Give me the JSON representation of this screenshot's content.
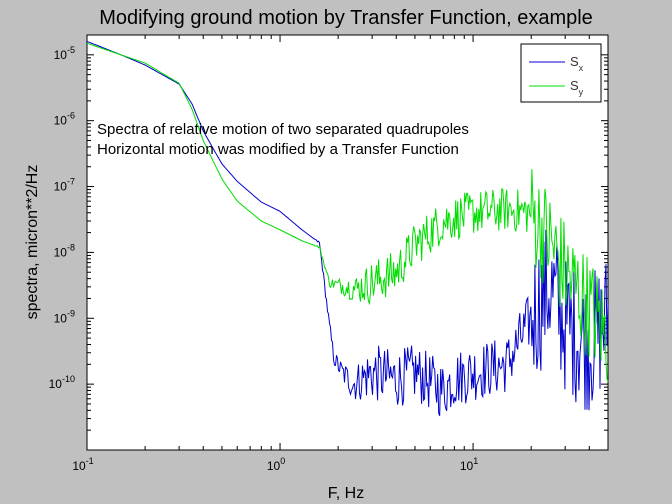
{
  "chart_data": {
    "type": "line",
    "title": "Modifying ground motion by Transfer Function, example",
    "xlabel": "F, Hz",
    "ylabel": "spectra, micron**2/Hz",
    "xscale": "log",
    "yscale": "log",
    "xlim": [
      0.1,
      50
    ],
    "ylim": [
      1e-11,
      2e-05
    ],
    "x_ticks": [
      {
        "base": "10",
        "exp": "-1",
        "value": 0.1
      },
      {
        "base": "10",
        "exp": "0",
        "value": 1
      },
      {
        "base": "10",
        "exp": "1",
        "value": 10
      }
    ],
    "y_ticks": [
      {
        "base": "10",
        "exp": "-10",
        "value": 1e-10
      },
      {
        "base": "10",
        "exp": "-9",
        "value": 1e-09
      },
      {
        "base": "10",
        "exp": "-8",
        "value": 1e-08
      },
      {
        "base": "10",
        "exp": "-7",
        "value": 1e-07
      },
      {
        "base": "10",
        "exp": "-6",
        "value": 1e-06
      },
      {
        "base": "10",
        "exp": "-5",
        "value": 1e-05
      }
    ],
    "annotations": [
      "Spectra of relative motion of two separated quadrupoles",
      "Horizontal motion was modified by a Transfer Function"
    ],
    "legend_placement": "top-right",
    "grid": false,
    "series": [
      {
        "name": "S",
        "subscript": "x",
        "color": "#0000cc",
        "x": [
          0.1,
          0.15,
          0.2,
          0.3,
          0.35,
          0.4,
          0.5,
          0.6,
          0.8,
          1.0,
          1.3,
          1.6,
          1.8,
          1.9,
          2.1,
          2.4,
          3.0,
          4.0,
          5.0,
          7.0,
          8.0,
          10.0,
          15.0,
          20.0,
          25.0,
          30.0,
          40.0,
          50.0
        ],
        "y": [
          1.6e-05,
          1e-05,
          7e-06,
          3.6e-06,
          1.8e-06,
          7e-07,
          2.2e-07,
          1.2e-07,
          5.8e-08,
          4.2e-08,
          2.2e-08,
          1.4e-08,
          8e-10,
          2.5e-10,
          1.5e-10,
          1e-10,
          1.5e-10,
          1.2e-10,
          1.5e-10,
          8e-11,
          1.2e-10,
          1.5e-10,
          2e-10,
          1e-09,
          3e-09,
          8e-10,
          4e-10,
          1e-09
        ],
        "noise": 0.22
      },
      {
        "name": "S",
        "subscript": "y",
        "color": "#00dd00",
        "x": [
          0.1,
          0.15,
          0.2,
          0.3,
          0.35,
          0.4,
          0.5,
          0.6,
          0.8,
          1.0,
          1.3,
          1.6,
          1.8,
          2.0,
          2.5,
          3.0,
          4.0,
          5.0,
          7.0,
          10.0,
          15.0,
          20.0,
          25.0,
          30.0,
          40.0,
          50.0
        ],
        "y": [
          1.5e-05,
          1e-05,
          7.5e-06,
          3.7e-06,
          1.5e-06,
          5e-07,
          1.3e-07,
          6e-08,
          3e-08,
          2.2e-08,
          1.5e-08,
          1.2e-08,
          3.5e-09,
          3.2e-09,
          2.8e-09,
          3.5e-09,
          5e-09,
          1.3e-08,
          3e-08,
          4e-08,
          4.5e-08,
          4e-08,
          1.5e-08,
          5e-09,
          1.5e-09,
          5e-10
        ],
        "noise": 0.17
      }
    ]
  }
}
